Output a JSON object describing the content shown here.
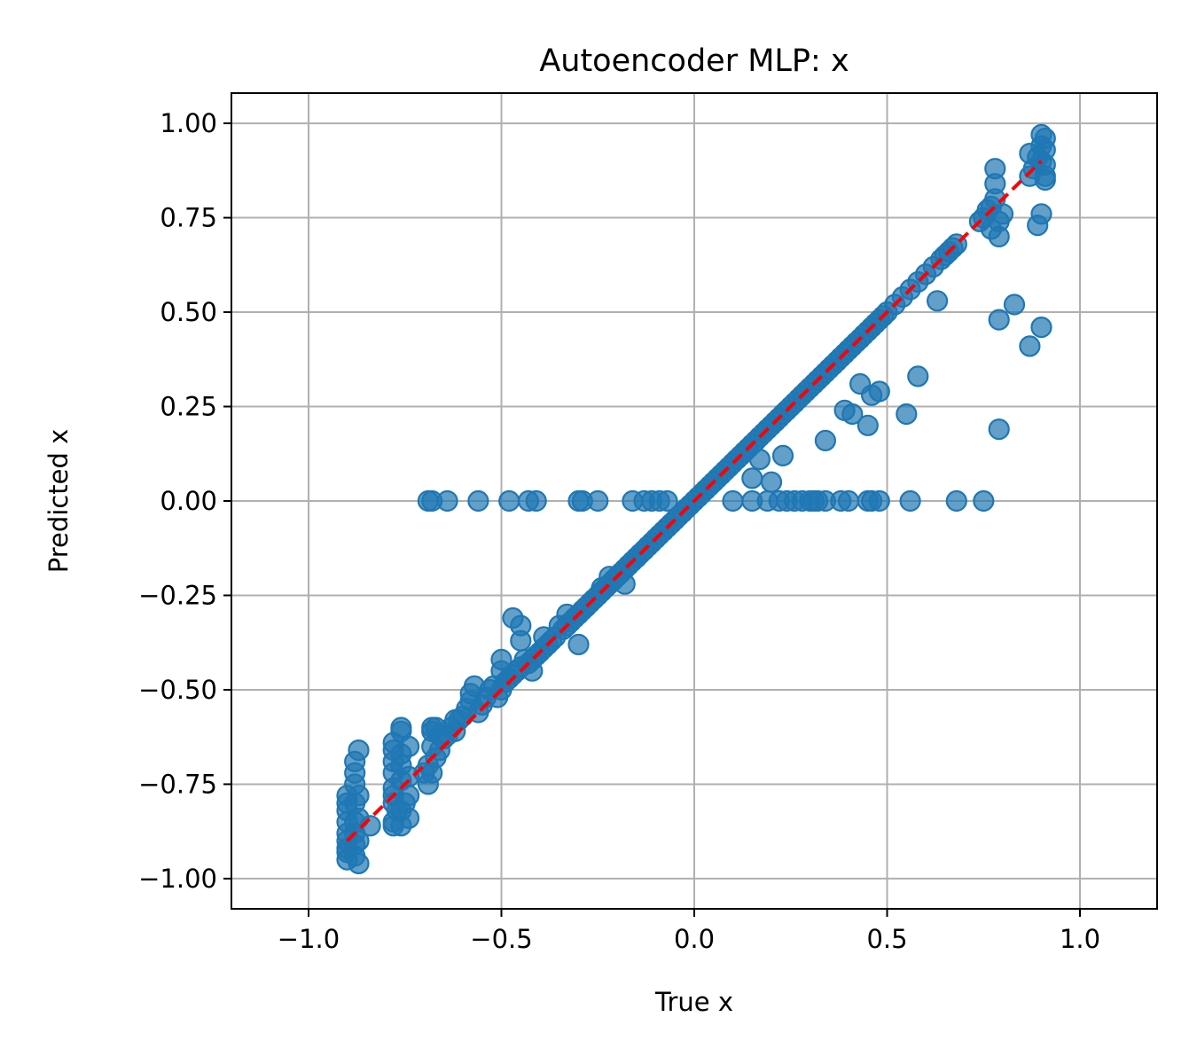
{
  "chart_data": {
    "type": "scatter",
    "title": "Autoencoder MLP: x",
    "xlabel": "True x",
    "ylabel": "Predicted x",
    "xlim": [
      -1.2,
      1.2
    ],
    "ylim": [
      -1.08,
      1.08
    ],
    "xticks": [
      -1.0,
      -0.5,
      0.0,
      0.5,
      1.0
    ],
    "xtick_labels": [
      "−1.0",
      "−0.5",
      "0.0",
      "0.5",
      "1.0"
    ],
    "yticks": [
      -1.0,
      -0.75,
      -0.5,
      -0.25,
      0.0,
      0.25,
      0.5,
      0.75,
      1.0
    ],
    "ytick_labels": [
      "−1.00",
      "−0.75",
      "−0.50",
      "−0.25",
      "0.00",
      "0.25",
      "0.50",
      "0.75",
      "1.00"
    ],
    "grid": true,
    "colors": {
      "points": "#1f77b4",
      "reference": "#ff0000",
      "grid": "#b0b0b0"
    },
    "series": [
      {
        "kind": "scatter",
        "x": [
          -0.9,
          -0.9,
          -0.9,
          -0.9,
          -0.9,
          -0.9,
          -0.9,
          -0.9,
          -0.9,
          -0.88,
          -0.88,
          -0.88,
          -0.88,
          -0.88,
          -0.88,
          -0.88,
          -0.88,
          -0.87,
          -0.87,
          -0.87,
          -0.87,
          -0.87,
          -0.78,
          -0.78,
          -0.78,
          -0.78,
          -0.78,
          -0.78,
          -0.78,
          -0.78,
          -0.76,
          -0.76,
          -0.76,
          -0.76,
          -0.76,
          -0.76,
          -0.75,
          -0.74,
          -0.74,
          -0.74,
          -0.74,
          -0.69,
          -0.69,
          -0.68,
          -0.68,
          -0.68,
          -0.67,
          -0.66,
          -0.65,
          -0.64,
          -0.63,
          -0.62,
          -0.6,
          -0.59,
          -0.58,
          -0.58,
          -0.56,
          -0.55,
          -0.54,
          -0.53,
          -0.52,
          -0.51,
          -0.5,
          -0.5,
          -0.5,
          -0.49,
          -0.48,
          -0.47,
          -0.46,
          -0.45,
          -0.44,
          -0.43,
          -0.42,
          -0.41,
          -0.4,
          -0.39,
          -0.38,
          -0.37,
          -0.36,
          -0.35,
          -0.34,
          -0.33,
          -0.32,
          -0.31,
          -0.3,
          -0.29,
          -0.28,
          -0.27,
          -0.26,
          -0.25,
          -0.24,
          -0.23,
          -0.22,
          -0.21,
          -0.2,
          -0.19,
          -0.18,
          -0.17,
          -0.16,
          -0.15,
          -0.14,
          -0.13,
          -0.12,
          -0.11,
          -0.1,
          -0.09,
          -0.08,
          -0.07,
          -0.06,
          -0.05,
          -0.04,
          -0.03,
          -0.02,
          -0.01,
          0.0,
          0.01,
          0.02,
          0.03,
          0.04,
          0.05,
          0.06,
          0.07,
          0.08,
          0.09,
          0.1,
          0.11,
          0.12,
          0.13,
          0.14,
          0.15,
          0.16,
          0.17,
          0.18,
          0.19,
          0.2,
          0.21,
          0.22,
          0.23,
          0.24,
          0.25,
          0.26,
          0.27,
          0.28,
          0.29,
          0.3,
          0.31,
          0.32,
          0.33,
          0.34,
          0.35,
          0.36,
          0.37,
          0.38,
          0.39,
          0.4,
          0.41,
          0.42,
          0.43,
          0.44,
          0.45,
          0.46,
          0.47,
          0.48,
          0.49,
          0.5,
          0.52,
          0.54,
          0.56,
          0.58,
          0.6,
          0.62,
          0.64,
          0.65,
          0.66,
          0.67,
          0.68,
          0.74,
          0.75,
          0.76,
          0.77,
          0.77,
          0.78,
          0.78,
          0.78,
          0.79,
          0.79,
          0.8,
          0.87,
          0.87,
          0.88,
          0.89,
          0.9,
          0.9,
          0.9,
          0.91,
          0.91,
          0.91,
          0.91,
          -0.69,
          -0.68,
          -0.64,
          -0.56,
          -0.48,
          -0.43,
          -0.41,
          -0.3,
          -0.29,
          -0.25,
          -0.16,
          -0.13,
          -0.11,
          -0.09,
          -0.07,
          0.1,
          0.15,
          0.19,
          0.22,
          0.24,
          0.26,
          0.28,
          0.3,
          0.31,
          0.32,
          0.34,
          0.38,
          0.4,
          0.45,
          0.46,
          0.48,
          0.56,
          0.68,
          0.75,
          -0.84,
          -0.78,
          -0.77,
          -0.76,
          -0.7,
          -0.68,
          -0.66,
          -0.67,
          -0.62,
          -0.61,
          -0.57,
          -0.47,
          -0.45,
          -0.45,
          -0.42,
          -0.39,
          -0.33,
          -0.3,
          -0.24,
          -0.22,
          -0.21,
          -0.18,
          -0.15,
          0.15,
          0.17,
          0.2,
          0.23,
          0.34,
          0.39,
          0.41,
          0.43,
          0.45,
          0.46,
          0.48,
          0.55,
          0.58,
          0.63,
          0.79,
          0.79,
          0.83,
          0.87,
          0.9,
          0.9,
          0.89,
          0.91
        ],
        "y": [
          -0.95,
          -0.92,
          -0.9,
          -0.88,
          -0.85,
          -0.82,
          -0.78,
          -0.93,
          -0.8,
          -0.94,
          -0.91,
          -0.88,
          -0.85,
          -0.8,
          -0.75,
          -0.72,
          -0.69,
          -0.66,
          -0.96,
          -0.9,
          -0.84,
          -0.78,
          -0.85,
          -0.8,
          -0.76,
          -0.72,
          -0.69,
          -0.66,
          -0.64,
          -0.78,
          -0.86,
          -0.82,
          -0.74,
          -0.7,
          -0.67,
          -0.61,
          -0.8,
          -0.84,
          -0.78,
          -0.73,
          -0.65,
          -0.75,
          -0.7,
          -0.65,
          -0.6,
          -0.72,
          -0.68,
          -0.66,
          -0.63,
          -0.62,
          -0.6,
          -0.61,
          -0.57,
          -0.55,
          -0.53,
          -0.51,
          -0.56,
          -0.54,
          -0.52,
          -0.5,
          -0.49,
          -0.52,
          -0.5,
          -0.45,
          -0.42,
          -0.48,
          -0.47,
          -0.46,
          -0.45,
          -0.44,
          -0.42,
          -0.43,
          -0.42,
          -0.41,
          -0.4,
          -0.39,
          -0.38,
          -0.37,
          -0.36,
          -0.33,
          -0.34,
          -0.33,
          -0.32,
          -0.31,
          -0.3,
          -0.29,
          -0.28,
          -0.27,
          -0.26,
          -0.25,
          -0.24,
          -0.23,
          -0.22,
          -0.21,
          -0.2,
          -0.19,
          -0.18,
          -0.17,
          -0.16,
          -0.15,
          -0.14,
          -0.13,
          -0.12,
          -0.11,
          -0.1,
          -0.09,
          -0.08,
          -0.07,
          -0.06,
          -0.05,
          -0.04,
          -0.03,
          -0.02,
          -0.01,
          0.0,
          0.01,
          0.02,
          0.03,
          0.04,
          0.05,
          0.06,
          0.07,
          0.08,
          0.09,
          0.1,
          0.11,
          0.12,
          0.13,
          0.14,
          0.15,
          0.16,
          0.17,
          0.18,
          0.19,
          0.2,
          0.21,
          0.22,
          0.23,
          0.24,
          0.25,
          0.26,
          0.27,
          0.28,
          0.29,
          0.3,
          0.31,
          0.32,
          0.33,
          0.34,
          0.35,
          0.36,
          0.37,
          0.38,
          0.39,
          0.4,
          0.41,
          0.42,
          0.43,
          0.44,
          0.45,
          0.46,
          0.47,
          0.48,
          0.49,
          0.5,
          0.52,
          0.54,
          0.56,
          0.58,
          0.6,
          0.62,
          0.64,
          0.65,
          0.66,
          0.67,
          0.68,
          0.74,
          0.75,
          0.77,
          0.78,
          0.72,
          0.8,
          0.84,
          0.88,
          0.74,
          0.7,
          0.76,
          0.86,
          0.92,
          0.88,
          0.91,
          0.94,
          0.97,
          0.9,
          0.85,
          0.89,
          0.93,
          0.96,
          0.0,
          0.0,
          0.0,
          0.0,
          0.0,
          0.0,
          0.0,
          0.0,
          0.0,
          0.0,
          0.0,
          0.0,
          0.0,
          0.0,
          0.0,
          0.0,
          0.0,
          0.0,
          0.0,
          0.0,
          0.0,
          0.0,
          0.0,
          0.0,
          0.0,
          0.0,
          0.0,
          0.0,
          0.0,
          0.0,
          0.0,
          0.0,
          0.0,
          0.0,
          -0.86,
          -0.86,
          -0.82,
          -0.6,
          -0.72,
          -0.61,
          -0.62,
          -0.6,
          -0.58,
          -0.58,
          -0.49,
          -0.31,
          -0.33,
          -0.37,
          -0.45,
          -0.36,
          -0.3,
          -0.38,
          -0.23,
          -0.2,
          -0.21,
          -0.22,
          -0.15,
          0.06,
          0.11,
          0.05,
          0.12,
          0.16,
          0.24,
          0.23,
          0.31,
          0.2,
          0.28,
          0.29,
          0.23,
          0.33,
          0.53,
          0.19,
          0.48,
          0.52,
          0.41,
          0.46,
          0.76,
          0.73,
          0.86
        ]
      },
      {
        "kind": "reference_line",
        "style": "dashed",
        "x": [
          -0.9,
          0.9
        ],
        "y": [
          -0.9,
          0.9
        ]
      }
    ]
  }
}
